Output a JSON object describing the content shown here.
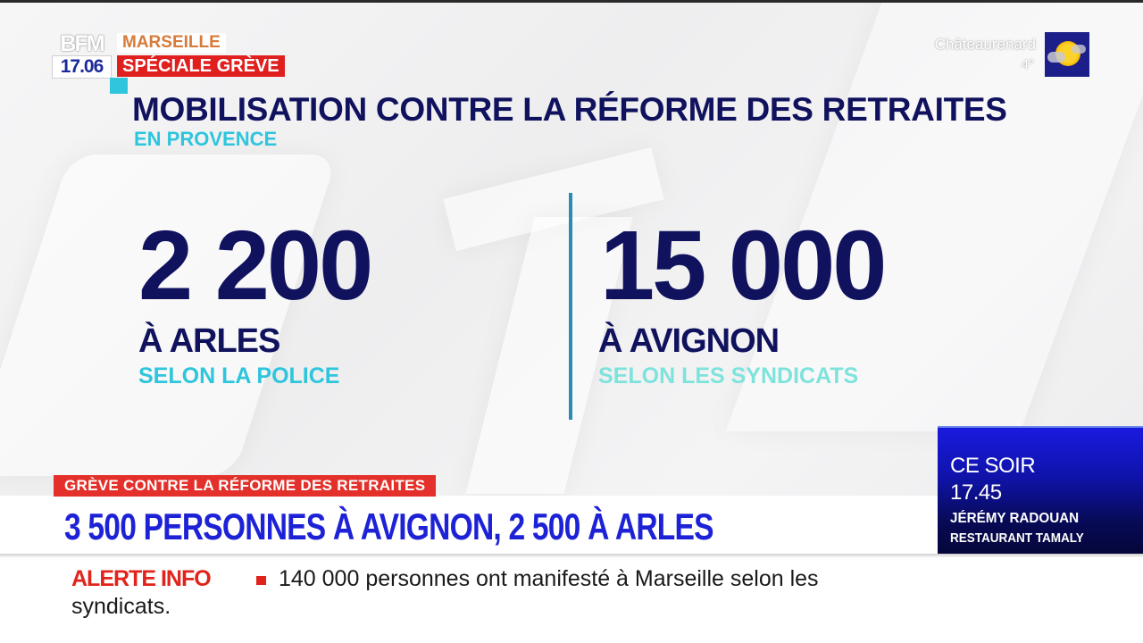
{
  "channel": {
    "logo_text": "BFM",
    "time": "17.06",
    "city": "MARSEILLE",
    "program": "SPÉCIALE GRÈVE",
    "colors": {
      "navy": "#10125e",
      "cyan": "#2ec5dd",
      "red": "#e01f1f",
      "orange": "#d77b3a",
      "headline_blue": "#1d22d6"
    }
  },
  "weather": {
    "city": "Châteaurenard",
    "temperature": "4°",
    "icon": "sun-cloud-icon"
  },
  "graphic": {
    "title": "MOBILISATION CONTRE LA RÉFORME DES RETRAITES",
    "subtitle": "EN PROVENCE",
    "stats": [
      {
        "value": "2 200",
        "city": "À ARLES",
        "source": "SELON LA POLICE"
      },
      {
        "value": "15 000",
        "city": "À AVIGNON",
        "source": "SELON LES SYNDICATS"
      }
    ]
  },
  "lower_third": {
    "tag": "GRÈVE CONTRE LA RÉFORME DES RETRAITES",
    "headline": "3 500 PERSONNES À AVIGNON, 2 500 À ARLES"
  },
  "side_panel": {
    "when": "CE SOIR",
    "time": "17.45",
    "name": "JÉRÉMY RADOUAN",
    "place": "RESTAURANT TAMALY"
  },
  "ticker": {
    "label": "ALERTE INFO",
    "line1": "140 000 personnes ont manifesté à Marseille selon les",
    "line2": "syndicats."
  }
}
